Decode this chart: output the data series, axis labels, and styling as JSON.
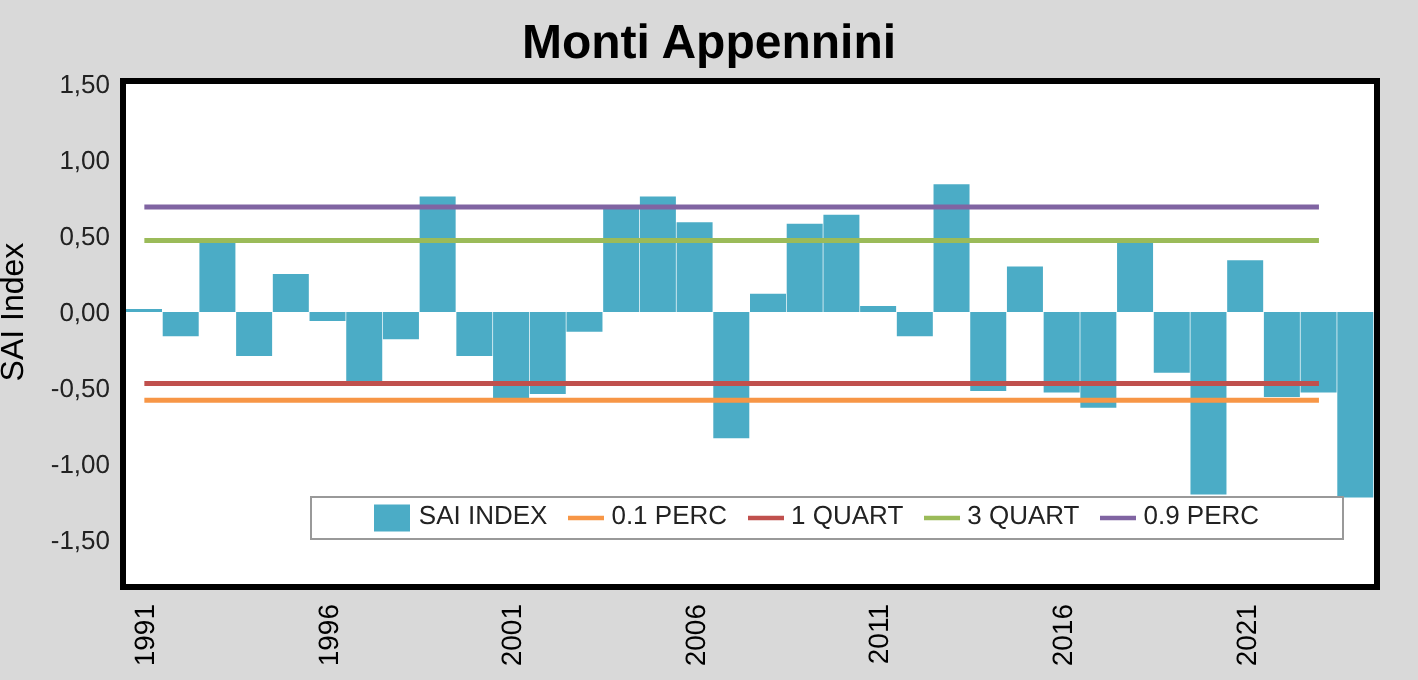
{
  "chart_data": {
    "type": "bar",
    "title": "Monti Appennini",
    "ylabel": "SAI Index",
    "categories": [
      "1991",
      null,
      null,
      null,
      null,
      "1996",
      null,
      null,
      null,
      null,
      "2001",
      null,
      null,
      null,
      null,
      "2006",
      null,
      null,
      null,
      null,
      "2011",
      null,
      null,
      null,
      null,
      "2016",
      null,
      null,
      null,
      null,
      "2021",
      null,
      null,
      null
    ],
    "series": [
      {
        "name": "SAI INDEX",
        "color": "#4bacc6",
        "values": [
          0.02,
          -0.16,
          0.46,
          -0.29,
          0.25,
          -0.06,
          -0.48,
          -0.18,
          0.76,
          -0.29,
          -0.57,
          -0.54,
          -0.13,
          0.68,
          0.76,
          0.59,
          -0.83,
          0.12,
          0.58,
          0.64,
          0.04,
          -0.16,
          0.84,
          -0.52,
          0.3,
          -0.53,
          -0.63,
          0.47,
          -0.4,
          -1.2,
          0.34,
          -0.56,
          -0.53,
          -1.22
        ]
      },
      {
        "name": "0.1 PERC",
        "type": "line",
        "color": "#f79646",
        "values": [
          -0.58,
          -0.58,
          -0.58,
          -0.58,
          -0.58,
          -0.58,
          -0.58,
          -0.58,
          -0.58,
          -0.58,
          -0.58,
          -0.58,
          -0.58,
          -0.58,
          -0.58,
          -0.58,
          -0.58,
          -0.58,
          -0.58,
          -0.58,
          -0.58,
          -0.58,
          -0.58,
          -0.58,
          -0.58,
          -0.58,
          -0.58,
          -0.58,
          -0.58,
          -0.58,
          -0.58,
          -0.58,
          -0.58,
          null
        ]
      },
      {
        "name": "1 QUART",
        "type": "line",
        "color": "#c0504d",
        "values": [
          -0.47,
          -0.47,
          -0.47,
          -0.47,
          -0.47,
          -0.47,
          -0.47,
          -0.47,
          -0.47,
          -0.47,
          -0.47,
          -0.47,
          -0.47,
          -0.47,
          -0.47,
          -0.47,
          -0.47,
          -0.47,
          -0.47,
          -0.47,
          -0.47,
          -0.47,
          -0.47,
          -0.47,
          -0.47,
          -0.47,
          -0.47,
          -0.47,
          -0.47,
          -0.47,
          -0.47,
          -0.47,
          -0.47,
          null
        ]
      },
      {
        "name": "3 QUART",
        "type": "line",
        "color": "#9bbb59",
        "values": [
          0.47,
          0.47,
          0.47,
          0.47,
          0.47,
          0.47,
          0.47,
          0.47,
          0.47,
          0.47,
          0.47,
          0.47,
          0.47,
          0.47,
          0.47,
          0.47,
          0.47,
          0.47,
          0.47,
          0.47,
          0.47,
          0.47,
          0.47,
          0.47,
          0.47,
          0.47,
          0.47,
          0.47,
          0.47,
          0.47,
          0.47,
          0.47,
          0.47,
          null
        ]
      },
      {
        "name": "0.9 PERC",
        "type": "line",
        "color": "#8064a2",
        "values": [
          0.69,
          0.69,
          0.69,
          0.69,
          0.69,
          0.69,
          0.69,
          0.69,
          0.69,
          0.69,
          0.69,
          0.69,
          0.69,
          0.69,
          0.69,
          0.69,
          0.69,
          0.69,
          0.69,
          0.69,
          0.69,
          0.69,
          0.69,
          0.69,
          0.69,
          0.69,
          0.69,
          0.69,
          0.69,
          0.69,
          0.69,
          0.69,
          0.69,
          null
        ]
      }
    ],
    "ylim": [
      -1.5,
      1.5
    ],
    "yticks": [
      {
        "value": -1.5,
        "label": "-1,50"
      },
      {
        "value": -1,
        "label": "-1,00"
      },
      {
        "value": -0.5,
        "label": "-0,50"
      },
      {
        "value": 0,
        "label": "0,00"
      },
      {
        "value": 0.5,
        "label": "0,50"
      },
      {
        "value": 1,
        "label": "1,00"
      },
      {
        "value": 1.5,
        "label": "1,50"
      }
    ],
    "legend": "bottom",
    "grid": false,
    "marker": "none",
    "line_style": "solid"
  }
}
